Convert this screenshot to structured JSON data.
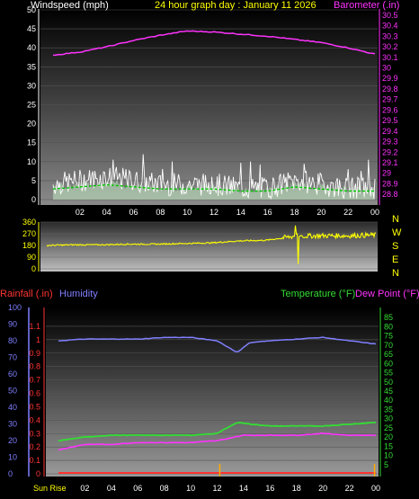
{
  "header": {
    "wind_label": "Windspeed (mph)",
    "title": "24 hour graph day : January 11 2026",
    "baro_label": "Barometer (.in)"
  },
  "mid": {
    "compass": [
      "N",
      "W",
      "S",
      "E",
      "N"
    ]
  },
  "bottom": {
    "rain_label": "Rainfall (.in)",
    "hum_label": "Humidity",
    "temp_label": "Temperature (°F)",
    "dew_label": "Dew Point (°F)",
    "sunrise_label": "Sun Rise"
  },
  "colors": {
    "wind": "#ffffff",
    "gust_fill": "#cfffcf",
    "wind_avg": "#00c800",
    "baro": "#ff33ff",
    "direction": "#ffff00",
    "humidity": "#7f7fff",
    "temperature": "#33dd33",
    "dewpoint": "#ff33ff",
    "rain": "#ff3333",
    "sun": "#ffaa00"
  },
  "chart_data": [
    {
      "type": "line",
      "panel": "wind-barometer",
      "x_ticks": [
        "02",
        "04",
        "06",
        "08",
        "10",
        "12",
        "14",
        "16",
        "18",
        "20",
        "22",
        "00"
      ],
      "y_left": {
        "label": "Windspeed (mph)",
        "ylim": [
          0,
          50
        ],
        "ticks": [
          0,
          5,
          10,
          15,
          20,
          25,
          30,
          35,
          40,
          45,
          50
        ]
      },
      "y_right": {
        "label": "Barometer (.in)",
        "ylim": [
          28.75,
          30.55
        ],
        "ticks": [
          "28.8",
          "28.9",
          "29",
          "29.1",
          "29.2",
          "29.3",
          "29.4",
          "29.5",
          "29.6",
          "29.7",
          "29.8",
          "29.9",
          "30",
          "30.1",
          "30.2",
          "30.3",
          "30.4",
          "30.5"
        ]
      },
      "series": [
        {
          "name": "Barometer",
          "x": [
            0,
            2,
            4,
            6,
            8,
            10,
            12,
            14,
            16,
            18,
            20,
            22,
            24
          ],
          "values": [
            30.12,
            30.15,
            30.2,
            30.26,
            30.31,
            30.35,
            30.34,
            30.32,
            30.3,
            30.27,
            30.24,
            30.19,
            30.13
          ]
        },
        {
          "name": "Wind speed",
          "x": [
            0,
            2,
            4,
            6,
            8,
            10,
            12,
            14,
            16,
            18,
            20,
            22,
            24
          ],
          "values": [
            4,
            5,
            6,
            5,
            4,
            4,
            4,
            3,
            3,
            5,
            4,
            3,
            3
          ]
        }
      ]
    },
    {
      "type": "scatter",
      "panel": "wind-direction",
      "x_ticks": [
        "02",
        "04",
        "06",
        "08",
        "10",
        "12",
        "14",
        "16",
        "18",
        "20",
        "22",
        "00"
      ],
      "y": {
        "ylim": [
          0,
          360
        ],
        "ticks": [
          0,
          90,
          180,
          270,
          360
        ]
      },
      "series": [
        {
          "name": "Direction",
          "x": [
            0,
            2,
            4,
            6,
            8,
            10,
            12,
            14,
            16,
            18,
            20,
            22,
            24
          ],
          "values": [
            180,
            185,
            185,
            190,
            190,
            195,
            200,
            215,
            220,
            250,
            255,
            255,
            260
          ]
        }
      ]
    },
    {
      "type": "line",
      "panel": "rain-humidity-temperature",
      "x_ticks": [
        "Sun Rise",
        "02",
        "04",
        "06",
        "08",
        "10",
        "12",
        "14",
        "16",
        "18",
        "20",
        "22",
        "00"
      ],
      "y_humidity": {
        "label": "Humidity",
        "ylim": [
          0,
          100
        ],
        "ticks": [
          0,
          10,
          20,
          30,
          40,
          50,
          60,
          70,
          80,
          90,
          100
        ]
      },
      "y_rain": {
        "label": "Rainfall (.in)",
        "ylim": [
          0,
          1.2
        ],
        "ticks": [
          "0",
          "0.1",
          "0.2",
          "0.3",
          "0.4",
          "0.5",
          "0.6",
          "0.7",
          "0.8",
          "0.9",
          "1",
          "1.1"
        ]
      },
      "y_temp": {
        "label": "Temperature (°F)",
        "ylim": [
          0,
          90
        ],
        "ticks": [
          5,
          10,
          15,
          20,
          25,
          30,
          35,
          40,
          45,
          50,
          55,
          60,
          65,
          70,
          75,
          80,
          85
        ]
      },
      "series": [
        {
          "name": "Humidity",
          "x": [
            0,
            2,
            4,
            6,
            8,
            10,
            12,
            13.5,
            14.5,
            16,
            18,
            20,
            22,
            24
          ],
          "values": [
            80,
            81,
            81,
            81,
            82,
            82,
            80,
            73,
            79,
            80,
            81,
            82,
            80,
            78
          ]
        },
        {
          "name": "Temperature",
          "x": [
            0,
            2,
            4,
            6,
            8,
            10,
            12,
            13.5,
            14.5,
            16,
            18,
            20,
            22,
            24
          ],
          "values": [
            18,
            20,
            21,
            21,
            21,
            21,
            22,
            28,
            27,
            26,
            26,
            26,
            27,
            28
          ]
        },
        {
          "name": "Dew Point",
          "x": [
            0,
            2,
            4,
            6,
            8,
            10,
            12,
            14,
            16,
            18,
            20,
            22,
            24
          ],
          "values": [
            13,
            16,
            16,
            17,
            17,
            17,
            18,
            21,
            21,
            21,
            22,
            21,
            21
          ]
        },
        {
          "name": "Rainfall",
          "x": [
            0,
            24
          ],
          "values": [
            0,
            0
          ]
        }
      ],
      "markers": {
        "sun_rise_hour": 12.2,
        "sun_set_hour": 23.9
      }
    }
  ]
}
